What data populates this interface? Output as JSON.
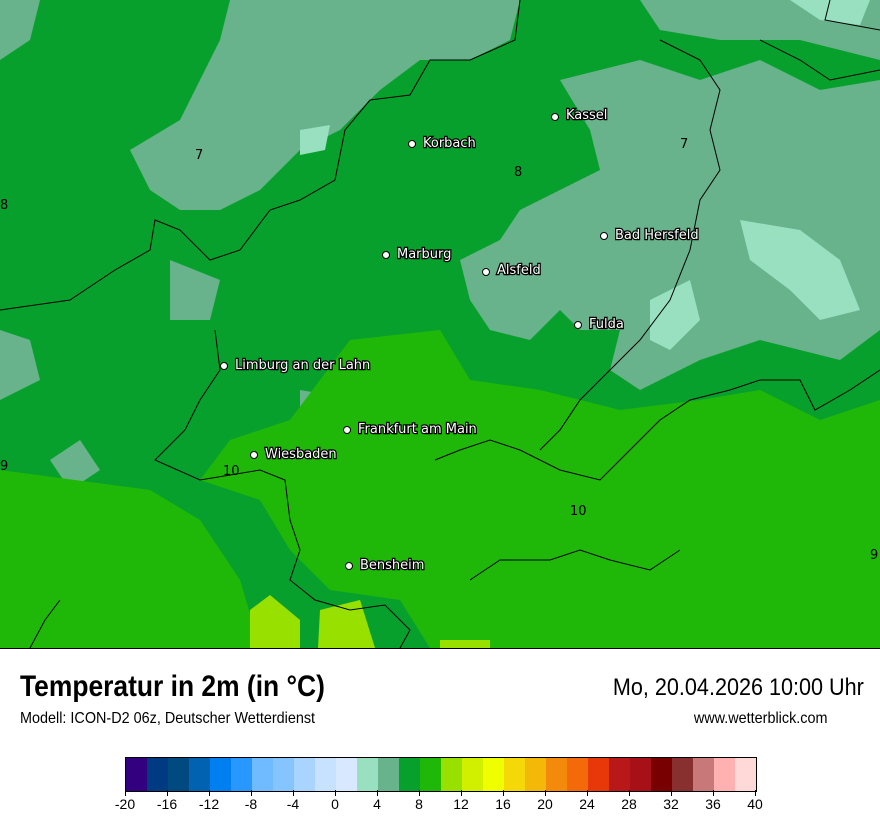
{
  "title": "Temperatur in 2m (in °C)",
  "model": "Modell: ICON-D2 06z, Deutscher Wetterdienst",
  "datetime": "Mo, 20.04.2026 10:00 Uhr",
  "website": "www.wetterblick.com",
  "cities": [
    {
      "name": "Kassel"
    },
    {
      "name": "Korbach"
    },
    {
      "name": "Bad Hersfeld"
    },
    {
      "name": "Marburg"
    },
    {
      "name": "Alsfeld"
    },
    {
      "name": "Fulda"
    },
    {
      "name": "Limburg an der Lahn"
    },
    {
      "name": "Frankfurt am Main"
    },
    {
      "name": "Wiesbaden"
    },
    {
      "name": "Bensheim"
    }
  ],
  "isotherm_labels": [
    "7",
    "8",
    "7",
    "8",
    "9",
    "10",
    "10",
    "9"
  ],
  "legend": {
    "ticks": [
      "-20",
      "-16",
      "-12",
      "-8",
      "-4",
      "0",
      "4",
      "8",
      "12",
      "16",
      "20",
      "24",
      "28",
      "32",
      "36",
      "40"
    ],
    "min": -20,
    "max": 40,
    "step": 2,
    "colors": [
      "#330080",
      "#003a80",
      "#004a80",
      "#0062b0",
      "#0080f0",
      "#2898ff",
      "#70baff",
      "#85c4ff",
      "#a8d4ff",
      "#c6e2ff",
      "#d8e8ff",
      "#98e0c0",
      "#68b28c",
      "#08a02c",
      "#20b808",
      "#98e000",
      "#d0f000",
      "#f0ff00",
      "#f4d808",
      "#f4b808",
      "#f48a0c",
      "#f46a0a",
      "#e8380a",
      "#b81818",
      "#a81018",
      "#780000",
      "#883030",
      "#c87878",
      "#ffb0b0",
      "#ffd8d8"
    ]
  }
}
